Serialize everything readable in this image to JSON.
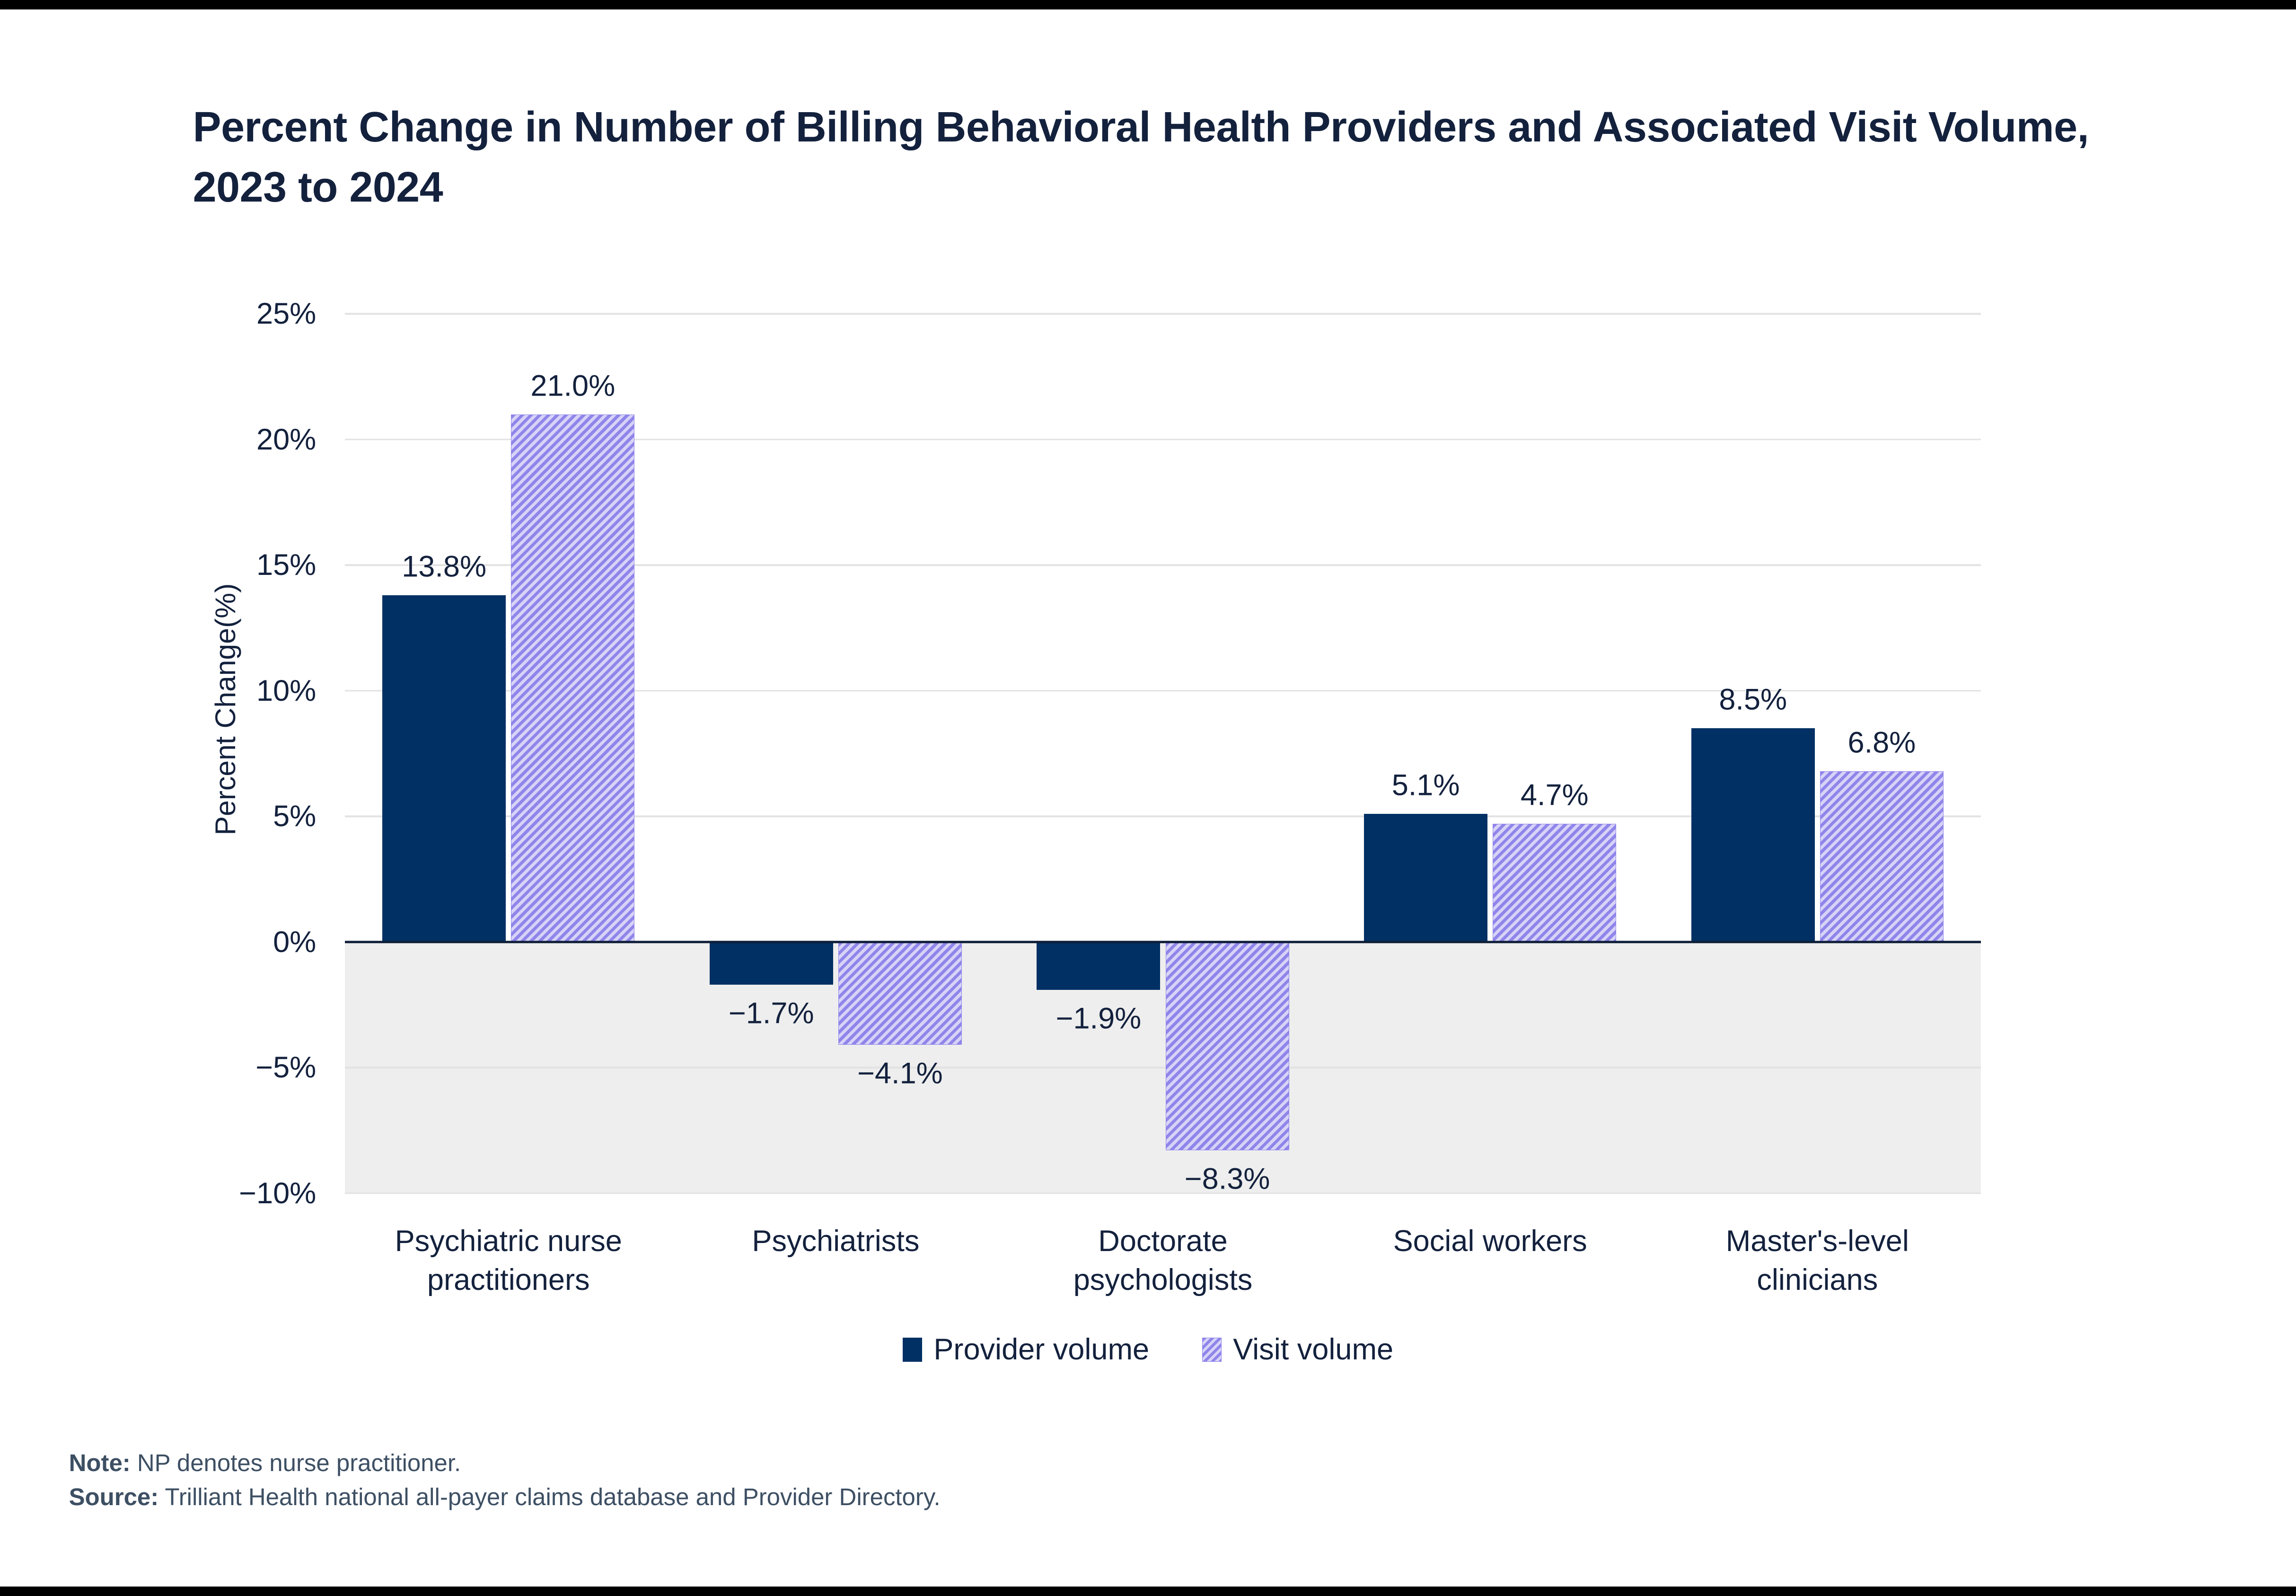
{
  "frame": {
    "top_bar_color": "#000000",
    "bottom_bar_color": "#000000"
  },
  "colors": {
    "navy": "#003064",
    "purple": "#8f85ea",
    "purple_light": "#d7d3f7",
    "text_dark": "#13213d",
    "footer_text": "#3d4f63",
    "gridline": "#e2e2e2",
    "axis_line": "#0e1e38",
    "negative_bg": "#eeeeee",
    "frame_bar": "#000000",
    "page_bg": "#ffffff"
  },
  "title": {
    "text": "Percent Change in Number of Billing Behavioral Health Providers and Associated Visit Volume, 2023 to 2024",
    "lines": [
      "Percent Change in Number of Billing Behavioral Health Providers and Associated Visit Volume,",
      "2023 to 2024"
    ]
  },
  "chart_data": {
    "type": "bar",
    "title": "Percent Change in Number of Billing Behavioral Health Providers and Associated Visit Volume, 2023 to 2024",
    "xlabel": "",
    "ylabel": "Percent Change(%)",
    "ylim": [
      -10,
      25
    ],
    "grid": true,
    "legend_position": "bottom",
    "negative_region_shaded": true,
    "yticks": [
      {
        "value": 25,
        "label": "25%"
      },
      {
        "value": 20,
        "label": "20%"
      },
      {
        "value": 15,
        "label": "15%"
      },
      {
        "value": 10,
        "label": "10%"
      },
      {
        "value": 5,
        "label": "5%"
      },
      {
        "value": 0,
        "label": "0%"
      },
      {
        "value": -5,
        "label": "−5%"
      },
      {
        "value": -10,
        "label": "−10%"
      }
    ],
    "categories": [
      "Psychiatric nurse practitioners",
      "Psychiatrists",
      "Doctorate psychologists",
      "Social workers",
      "Master's-level clinicians"
    ],
    "category_label_lines": [
      [
        "Psychiatric nurse",
        "practitioners"
      ],
      [
        "Psychiatrists"
      ],
      [
        "Doctorate",
        "psychologists"
      ],
      [
        "Social workers"
      ],
      [
        "Master's-level",
        "clinicians"
      ]
    ],
    "series": [
      {
        "name": "Provider volume",
        "style": "solid",
        "color": "#003064",
        "values": [
          13.8,
          -1.7,
          -1.9,
          5.1,
          8.5
        ],
        "data_labels": [
          "13.8%",
          "−1.7%",
          "−1.9%",
          "5.1%",
          "8.5%"
        ]
      },
      {
        "name": "Visit volume",
        "style": "hatched",
        "color": "#8f85ea",
        "color_light": "#d7d3f7",
        "values": [
          21.0,
          -4.1,
          -8.3,
          4.7,
          6.8
        ],
        "data_labels": [
          "21.0%",
          "−4.1%",
          "−8.3%",
          "4.7%",
          "6.8%"
        ]
      }
    ]
  },
  "legend": {
    "items": [
      {
        "label": "Provider volume",
        "style": "solid"
      },
      {
        "label": "Visit volume",
        "style": "hatched"
      }
    ]
  },
  "footer": {
    "note_label": "Note:",
    "note_text": " NP denotes nurse practitioner.",
    "source_label": "Source:",
    "source_text": " Trilliant Health national all-payer claims database and Provider Directory."
  }
}
